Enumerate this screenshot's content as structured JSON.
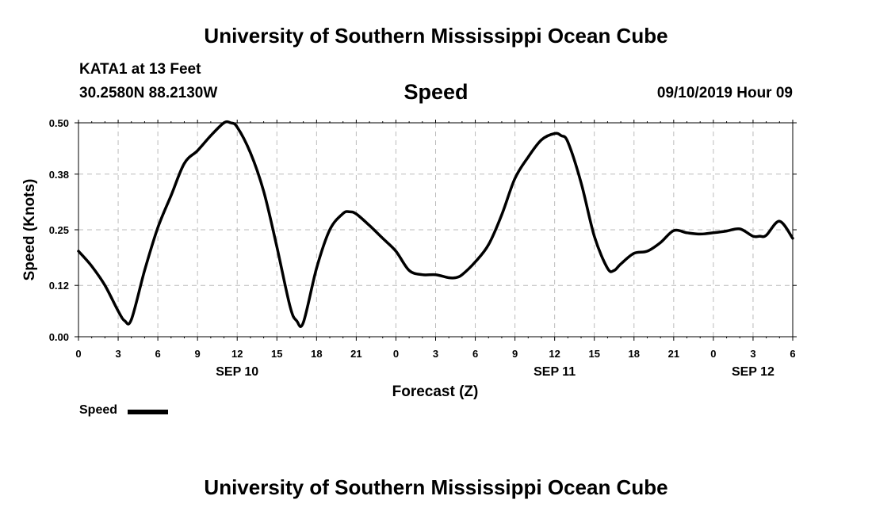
{
  "header": {
    "title": "University of Southern Mississippi Ocean Cube",
    "station": "KATA1 at 13 Feet",
    "coordinates": "30.2580N 88.2130W",
    "variable": "Speed",
    "datetime": "09/10/2019 Hour 09"
  },
  "footer": {
    "title": "University of Southern Mississippi Ocean Cube"
  },
  "legend": {
    "label": "Speed",
    "color": "#000000"
  },
  "chart_data": {
    "type": "line",
    "title": "Speed",
    "xlabel": "Forecast (Z)",
    "ylabel": "Speed (Knots)",
    "x_unit": "hours from SEP 10 00Z",
    "x_ticks": [
      0,
      3,
      6,
      9,
      12,
      15,
      18,
      21,
      24,
      27,
      30,
      33,
      36,
      39,
      42,
      45,
      48,
      51,
      54
    ],
    "x_tick_labels": [
      "0",
      "3",
      "6",
      "9",
      "12",
      "15",
      "18",
      "21",
      "0",
      "3",
      "6",
      "9",
      "12",
      "15",
      "18",
      "21",
      "0",
      "3",
      "6"
    ],
    "date_labels": [
      {
        "label": "SEP 10",
        "x": 12
      },
      {
        "label": "SEP 11",
        "x": 36
      },
      {
        "label": "SEP 12",
        "x": 51
      }
    ],
    "y_ticks": [
      0.0,
      0.12,
      0.25,
      0.38,
      0.5
    ],
    "y_tick_labels": [
      "0.00",
      "0.12",
      "0.25",
      "0.38",
      "0.50"
    ],
    "xlim": [
      0,
      54
    ],
    "ylim": [
      0,
      0.5
    ],
    "grid": true,
    "legend_position": "bottom-left",
    "series": [
      {
        "name": "Speed",
        "color": "#000000",
        "x": [
          0,
          1,
          2,
          3,
          3.5,
          4,
          5,
          6,
          7,
          8,
          9,
          10,
          11,
          11.5,
          12,
          13,
          14,
          15,
          16,
          16.5,
          17,
          18,
          19,
          20,
          20.5,
          21,
          22,
          23,
          24,
          25,
          26,
          27,
          28,
          28.5,
          29,
          30,
          31,
          32,
          33,
          34,
          35,
          36,
          36.5,
          37,
          38,
          39,
          40,
          40.5,
          41,
          42,
          43,
          44,
          45,
          46,
          47,
          48,
          49,
          50,
          51,
          51.5,
          52,
          53,
          54
        ],
        "y": [
          0.2,
          0.165,
          0.12,
          0.06,
          0.037,
          0.04,
          0.155,
          0.255,
          0.33,
          0.405,
          0.435,
          0.47,
          0.5,
          0.5,
          0.49,
          0.43,
          0.34,
          0.21,
          0.07,
          0.037,
          0.033,
          0.16,
          0.25,
          0.288,
          0.292,
          0.287,
          0.26,
          0.23,
          0.2,
          0.155,
          0.145,
          0.145,
          0.138,
          0.138,
          0.145,
          0.175,
          0.215,
          0.285,
          0.37,
          0.42,
          0.46,
          0.475,
          0.47,
          0.455,
          0.36,
          0.235,
          0.16,
          0.155,
          0.17,
          0.195,
          0.2,
          0.22,
          0.248,
          0.243,
          0.24,
          0.243,
          0.247,
          0.252,
          0.235,
          0.235,
          0.237,
          0.27,
          0.23
        ]
      }
    ]
  }
}
